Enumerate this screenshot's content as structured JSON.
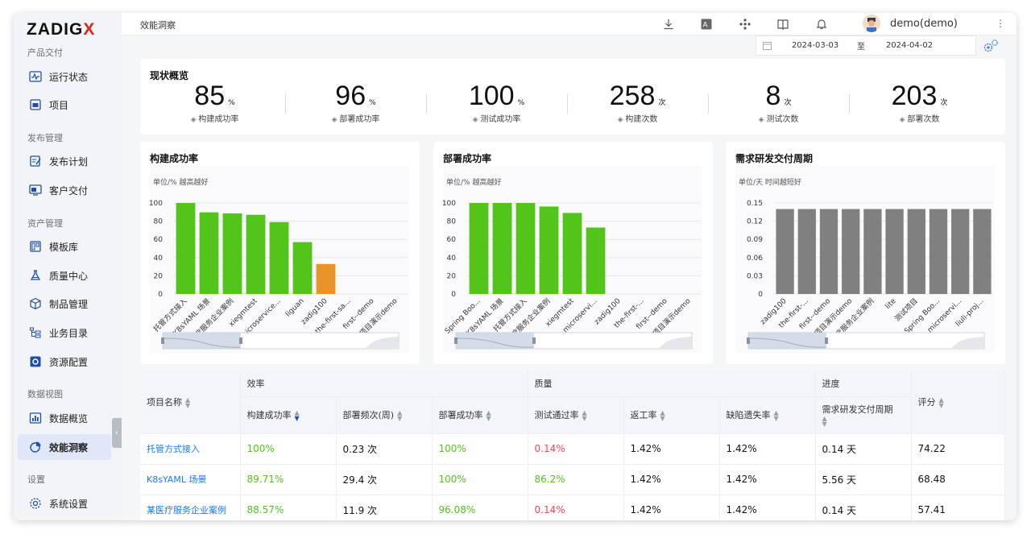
{
  "brand": {
    "logo_main": "ZADIG",
    "logo_x": "X"
  },
  "sidebar": {
    "groups": [
      "产品交付",
      "发布管理",
      "资产管理",
      "数据视图",
      "设置"
    ],
    "items": [
      {
        "label": "运行状态",
        "icon": "monitor-pulse-icon"
      },
      {
        "label": "项目",
        "icon": "project-icon"
      },
      {
        "label": "发布计划",
        "icon": "release-plan-icon"
      },
      {
        "label": "客户交付",
        "icon": "customer-delivery-icon"
      },
      {
        "label": "模板库",
        "icon": "template-icon"
      },
      {
        "label": "质量中心",
        "icon": "flask-icon"
      },
      {
        "label": "制品管理",
        "icon": "package-icon"
      },
      {
        "label": "业务目录",
        "icon": "catalog-icon"
      },
      {
        "label": "资源配置",
        "icon": "resource-gear-icon"
      },
      {
        "label": "数据概览",
        "icon": "bar-chart-icon"
      },
      {
        "label": "效能洞察",
        "icon": "pie-chart-icon"
      },
      {
        "label": "系统设置",
        "icon": "settings-gear-icon"
      }
    ]
  },
  "header": {
    "breadcrumb": "效能洞察",
    "user": "demo(demo)"
  },
  "daterange": {
    "start": "2024-03-03",
    "sep": "至",
    "end": "2024-04-02"
  },
  "overview": {
    "title": "现状概览",
    "stats": [
      {
        "value": "85",
        "unit": "%",
        "label": "构建成功率"
      },
      {
        "value": "96",
        "unit": "%",
        "label": "部署成功率"
      },
      {
        "value": "100",
        "unit": "%",
        "label": "测试成功率"
      },
      {
        "value": "258",
        "unit": "次",
        "label": "构建次数"
      },
      {
        "value": "8",
        "unit": "次",
        "label": "测试次数"
      },
      {
        "value": "203",
        "unit": "次",
        "label": "部署次数"
      }
    ]
  },
  "chart_data": [
    {
      "type": "bar",
      "title": "构建成功率",
      "note": "单位/% 越高越好",
      "ylim": [
        0,
        100
      ],
      "yticks": [
        "0",
        "20",
        "40",
        "60",
        "80",
        "100"
      ],
      "categories": [
        "托管方式接入",
        "K8sYAML 场景",
        "某医疗服务企业案例",
        "xiegmtest",
        "microservice...",
        "liguan",
        "zadig100",
        "the-first-sa...",
        "first--demo",
        "项目演示demo"
      ],
      "values": [
        100,
        89.71,
        88.57,
        87,
        79,
        57,
        33,
        0,
        0,
        0
      ],
      "colors": [
        "#52c41a",
        "#52c41a",
        "#52c41a",
        "#52c41a",
        "#52c41a",
        "#52c41a",
        "#e8942a",
        "#52c41a",
        "#52c41a",
        "#52c41a"
      ]
    },
    {
      "type": "bar",
      "title": "部署成功率",
      "note": "单位/% 越高越好",
      "ylim": [
        0,
        100
      ],
      "yticks": [
        "0",
        "20",
        "40",
        "60",
        "80",
        "100"
      ],
      "categories": [
        "Spring Boo...",
        "K8sYAML 场景",
        "托管方式接入",
        "某医疗服务企业案例",
        "xiegmtest",
        "microservi...",
        "zadig100",
        "the-first-...",
        "first--demo",
        "项目演示demo"
      ],
      "values": [
        100,
        100,
        100,
        96.08,
        89,
        73,
        0,
        0,
        0,
        0
      ],
      "colors": [
        "#52c41a",
        "#52c41a",
        "#52c41a",
        "#52c41a",
        "#52c41a",
        "#52c41a",
        "#52c41a",
        "#52c41a",
        "#52c41a",
        "#52c41a"
      ]
    },
    {
      "type": "bar",
      "title": "需求研发交付周期",
      "note": "单位/天 时间越短好",
      "ylim": [
        0,
        0.15
      ],
      "yticks": [
        "0",
        "0.03",
        "0.06",
        "0.09",
        "0.12",
        "0.15"
      ],
      "categories": [
        "zadig100",
        "the-first-...",
        "first--demo",
        "项目演示demo",
        "某医疗服务企业案例",
        "lite",
        "测试项目",
        "Spring Boo...",
        "microservi...",
        "liuli-proj..."
      ],
      "values": [
        0.14,
        0.14,
        0.14,
        0.14,
        0.14,
        0.14,
        0.14,
        0.14,
        0.14,
        0.14
      ],
      "colors": [
        "#808080",
        "#808080",
        "#808080",
        "#808080",
        "#808080",
        "#808080",
        "#808080",
        "#808080",
        "#808080",
        "#808080"
      ]
    }
  ],
  "table": {
    "group_headers": {
      "efficiency": "效率",
      "quality": "质量",
      "progress": "进度"
    },
    "columns": {
      "name": "项目名称",
      "build": "构建成功率",
      "freq": "部署频次(周)",
      "deploy": "部署成功率",
      "test": "测试通过率",
      "rework": "返工率",
      "defect": "缺陷遗失率",
      "cycle": "需求研发交付周期",
      "score": "评分"
    },
    "rows": [
      {
        "name": "托管方式接入",
        "build": "100%",
        "freq": "0.23 次",
        "deploy": "100%",
        "test": "0.14%",
        "rework": "1.42%",
        "defect": "1.42%",
        "cycle": "0.14 天",
        "score": "74.22"
      },
      {
        "name": "K8sYAML 场景",
        "build": "89.71%",
        "freq": "29.4 次",
        "deploy": "100%",
        "test": "86.2%",
        "rework": "1.42%",
        "defect": "1.42%",
        "cycle": "5.56 天",
        "score": "68.48"
      },
      {
        "name": "某医疗服务企业案例",
        "build": "88.57%",
        "freq": "11.9 次",
        "deploy": "96.08%",
        "test": "0.14%",
        "rework": "1.42%",
        "defect": "1.42%",
        "cycle": "0.14 天",
        "score": "57.41"
      }
    ]
  }
}
